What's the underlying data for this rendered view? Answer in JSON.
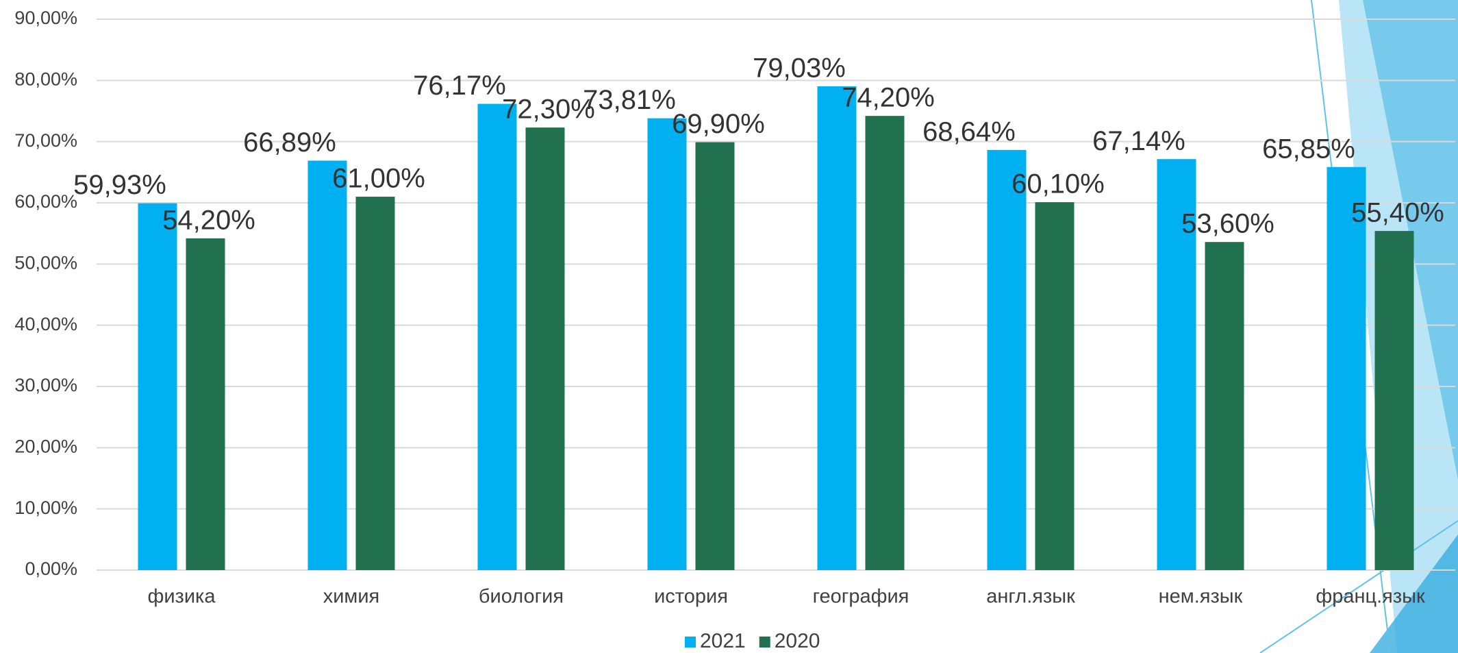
{
  "chart_data": {
    "type": "bar",
    "categories": [
      "физика",
      "химия",
      "биология",
      "история",
      "география",
      "англ.язык",
      "нем.язык",
      "франц.язык"
    ],
    "series": [
      {
        "name": "2021",
        "color": "#00b0f0",
        "values": [
          59.93,
          66.89,
          76.17,
          73.81,
          79.03,
          68.64,
          67.14,
          65.85
        ],
        "value_labels": [
          "59,93%",
          "66,89%",
          "76,17%",
          "73,81%",
          "79,03%",
          "68,64%",
          "67,14%",
          "65,85%"
        ]
      },
      {
        "name": "2020",
        "color": "#217150",
        "values": [
          54.2,
          61.0,
          72.3,
          69.9,
          74.2,
          60.1,
          53.6,
          55.4
        ],
        "value_labels": [
          "54,20%",
          "61,00%",
          "72,30%",
          "69,90%",
          "74,20%",
          "60,10%",
          "53,60%",
          "55,40%"
        ]
      }
    ],
    "ylim": [
      0,
      90
    ],
    "yticks": [
      {
        "value": 0,
        "label": "0,00%"
      },
      {
        "value": 10,
        "label": "10,00%"
      },
      {
        "value": 20,
        "label": "20,00%"
      },
      {
        "value": 30,
        "label": "30,00%"
      },
      {
        "value": 40,
        "label": "40,00%"
      },
      {
        "value": 50,
        "label": "50,00%"
      },
      {
        "value": 60,
        "label": "60,00%"
      },
      {
        "value": 70,
        "label": "70,00%"
      },
      {
        "value": 80,
        "label": "80,00%"
      },
      {
        "value": 90,
        "label": "90,00%"
      }
    ],
    "grid": true,
    "legend": "bottom"
  }
}
